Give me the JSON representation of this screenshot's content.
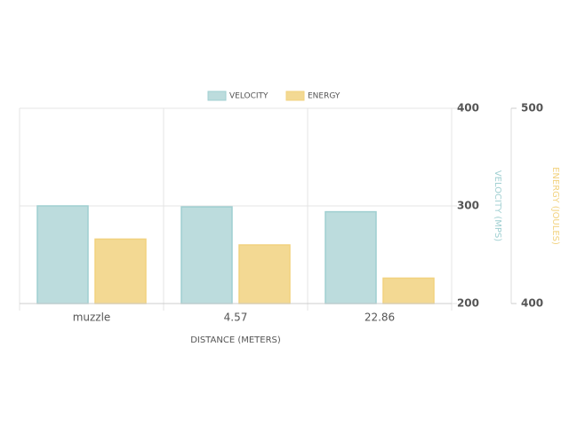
{
  "chart_data": {
    "type": "bar",
    "x_label": "DISTANCE (METERS)",
    "y_label": "VELOCITY (MPS)",
    "y2_label": "ENERGY (JOULES)",
    "categories": [
      "muzzle",
      "4.57",
      "22.86"
    ],
    "series": [
      {
        "name": "VELOCITY",
        "color": "#bcdcdd",
        "values": [
          300,
          299,
          294
        ]
      },
      {
        "name": "ENERGY",
        "color": "#f3d993",
        "values": [
          433,
          430,
          413
        ],
        "axis": "y2"
      }
    ],
    "ylim": [
      200,
      400
    ],
    "yticks": [
      200,
      300,
      400
    ],
    "y2lim": [
      400,
      500
    ],
    "y2ticks": [
      400,
      500
    ],
    "grid": true,
    "legend": "top"
  }
}
